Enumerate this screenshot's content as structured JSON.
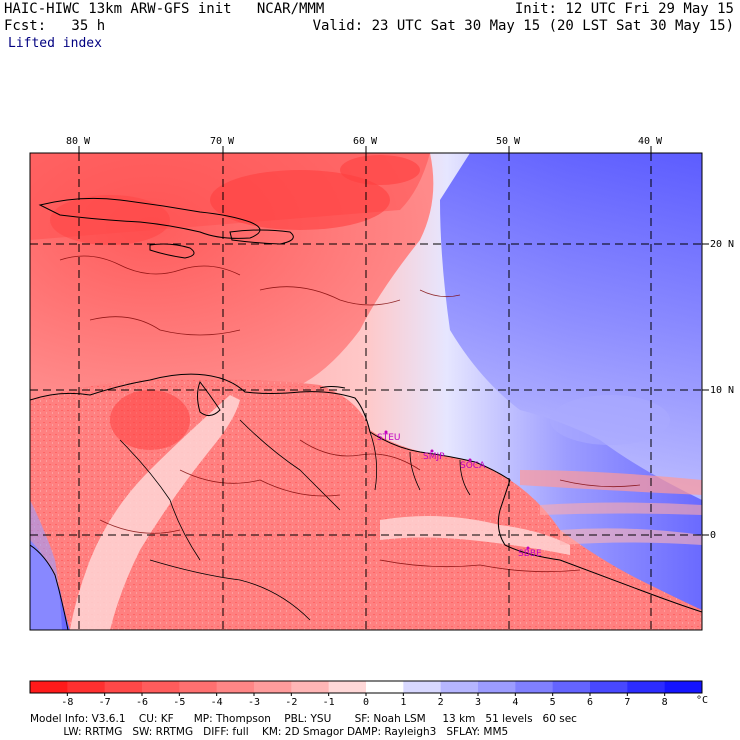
{
  "header": {
    "title": "HAIC-HIWC 13km ARW-GFS init   NCAR/MMM",
    "fcst": "Fcst:   35 h",
    "init": "Init: 12 UTC Fri 29 May 15",
    "valid": "Valid: 23 UTC Sat 30 May 15 (20 LST Sat 30 May 15)",
    "field": "Lifted index"
  },
  "map": {
    "lon_labels": [
      "80 W",
      "70 W",
      "60 W",
      "50 W",
      "40 W"
    ],
    "lat_labels": [
      "20 N",
      "10 N",
      "0"
    ],
    "sites": [
      "STEU",
      "SMJP",
      "SOCA",
      "SBBE"
    ]
  },
  "colorbar": {
    "labels": [
      "-8",
      "-7",
      "-6",
      "-5",
      "-4",
      "-3",
      "-2",
      "-1",
      "0",
      "1",
      "2",
      "3",
      "4",
      "5",
      "6",
      "7",
      "8"
    ],
    "unit": "°C",
    "colors": [
      "#ff1a1a",
      "#ff3030",
      "#ff4848",
      "#ff5c5c",
      "#ff7070",
      "#ff8686",
      "#ff9c9c",
      "#ffb6b6",
      "#ffd8d8",
      "#ffffff",
      "#d8d8ff",
      "#b6b6ff",
      "#9c9cff",
      "#8080ff",
      "#6464ff",
      "#4848ff",
      "#2c2cff",
      "#1414ff"
    ]
  },
  "footer": {
    "line1": "Model Info: V3.6.1    CU: KF      MP: Thompson    PBL: YSU       SF: Noah LSM     13 km   51 levels   60 sec",
    "line2": "          LW: RRTMG   SW: RRTMG   DIFF: full    KM: 2D Smagor DAMP: Rayleigh3   SFLAY: MM5"
  }
}
